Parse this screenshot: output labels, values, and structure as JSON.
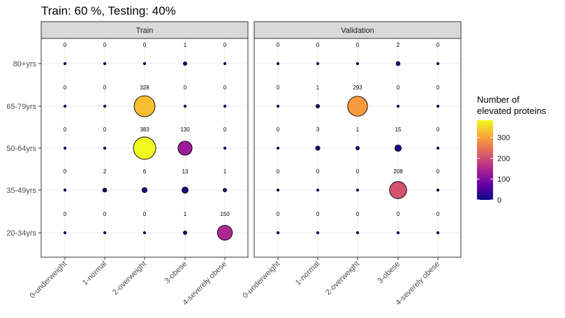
{
  "chart_data": {
    "type": "scatter",
    "title": "Train: 60 %, Testing: 40%",
    "categories_x": [
      "0-underweight",
      "1-normal",
      "2-overweight",
      "3-obese",
      "4-severely obese"
    ],
    "categories_y": [
      "20-34yrs",
      "35-49yrs",
      "50-64yrs",
      "65-79yrs",
      "80+yrs"
    ],
    "panels": [
      {
        "name": "Train",
        "values": {
          "80+yrs": [
            0,
            0,
            0,
            1,
            0
          ],
          "65-79yrs": [
            0,
            0,
            328,
            0,
            0
          ],
          "50-64yrs": [
            0,
            0,
            383,
            130,
            0
          ],
          "35-49yrs": [
            0,
            2,
            6,
            13,
            1
          ],
          "20-34yrs": [
            0,
            0,
            0,
            1,
            150
          ]
        }
      },
      {
        "name": "Validation",
        "values": {
          "80+yrs": [
            0,
            0,
            0,
            2,
            0
          ],
          "65-79yrs": [
            0,
            1,
            293,
            0,
            0
          ],
          "50-64yrs": [
            0,
            3,
            1,
            15,
            0
          ],
          "35-49yrs": [
            0,
            0,
            0,
            208,
            0
          ],
          "20-34yrs": [
            0,
            0,
            0,
            0,
            0
          ]
        }
      }
    ],
    "legend": {
      "title": [
        "Number of",
        "elevated proteins"
      ],
      "ticks": [
        0,
        100,
        200,
        300
      ],
      "range": [
        0,
        383
      ],
      "palette": [
        "#0d0887",
        "#6a00a8",
        "#b12a90",
        "#e16462",
        "#fca636",
        "#f0f921"
      ]
    }
  }
}
